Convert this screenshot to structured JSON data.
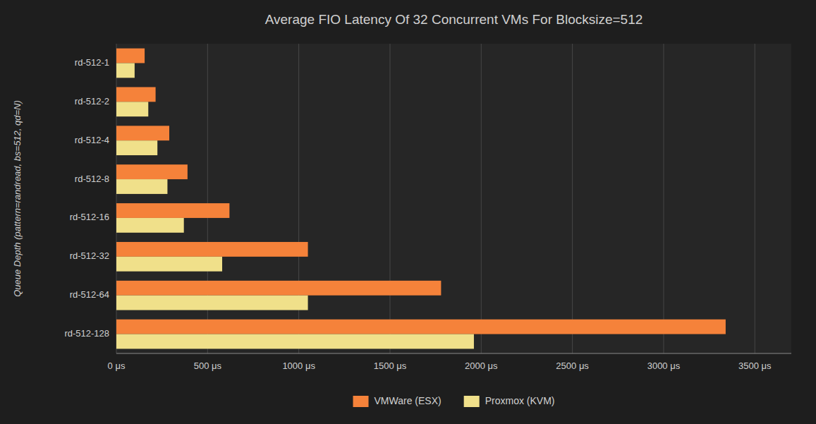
{
  "chart_data": {
    "type": "bar",
    "orientation": "horizontal",
    "title": "Average FIO Latency Of 32 Concurrent VMs For Blocksize=512",
    "ylabel": "Queue Depth (pattern=randread, bs=512, qd=N)",
    "categories": [
      "rd-512-1",
      "rd-512-2",
      "rd-512-4",
      "rd-512-8",
      "rd-512-16",
      "rd-512-32",
      "rd-512-64",
      "rd-512-128"
    ],
    "series": [
      {
        "name": "VMWare (ESX)",
        "color": "#F5823A",
        "values": [
          155,
          215,
          290,
          390,
          620,
          1050,
          1780,
          3340
        ]
      },
      {
        "name": "Proxmox (KVM)",
        "color": "#F0E08A",
        "values": [
          100,
          175,
          225,
          280,
          370,
          580,
          1050,
          1960
        ]
      }
    ],
    "xlim": [
      0,
      3700
    ],
    "xticks": [
      {
        "value": 0,
        "label": "0 μs"
      },
      {
        "value": 500,
        "label": "500 μs"
      },
      {
        "value": 1000,
        "label": "1000 μs"
      },
      {
        "value": 1500,
        "label": "1500 μs"
      },
      {
        "value": 2000,
        "label": "2000 μs"
      },
      {
        "value": 2500,
        "label": "2500 μs"
      },
      {
        "value": 3000,
        "label": "3000 μs"
      },
      {
        "value": 3500,
        "label": "3500 μs"
      }
    ],
    "grid": true,
    "legend": "bottom"
  }
}
